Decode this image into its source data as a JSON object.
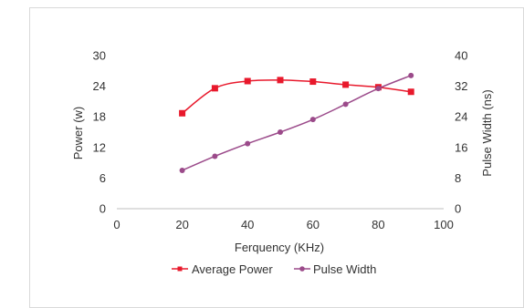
{
  "chart_data": {
    "type": "line",
    "xlabel": "Ferquency (KHz)",
    "ylabel": "Power (w)",
    "y2label": "Pulse Width (ns)",
    "xlim": [
      0,
      100
    ],
    "ylim": [
      0,
      30
    ],
    "y2lim": [
      0,
      40
    ],
    "x_ticks": [
      "0",
      "20",
      "40",
      "60",
      "80",
      "100"
    ],
    "y_ticks": [
      "0",
      "6",
      "12",
      "18",
      "24",
      "30"
    ],
    "y2_ticks": [
      "0",
      "8",
      "16",
      "24",
      "32",
      "40"
    ],
    "grid": false,
    "legend_position": "bottom",
    "series": [
      {
        "name": "Average Power",
        "axis": "left",
        "marker": "square",
        "color": "#e8192c",
        "x": [
          20,
          30,
          40,
          50,
          60,
          70,
          80,
          90
        ],
        "values": [
          18.7,
          23.6,
          25.0,
          25.2,
          24.9,
          24.3,
          23.8,
          22.9
        ]
      },
      {
        "name": "Pulse Width",
        "axis": "right",
        "marker": "circle",
        "color": "#9b4a8a",
        "x": [
          20,
          30,
          40,
          50,
          60,
          70,
          80,
          90
        ],
        "values": [
          10,
          13.7,
          17,
          20,
          23.3,
          27.3,
          31.4,
          34.8
        ]
      }
    ]
  }
}
